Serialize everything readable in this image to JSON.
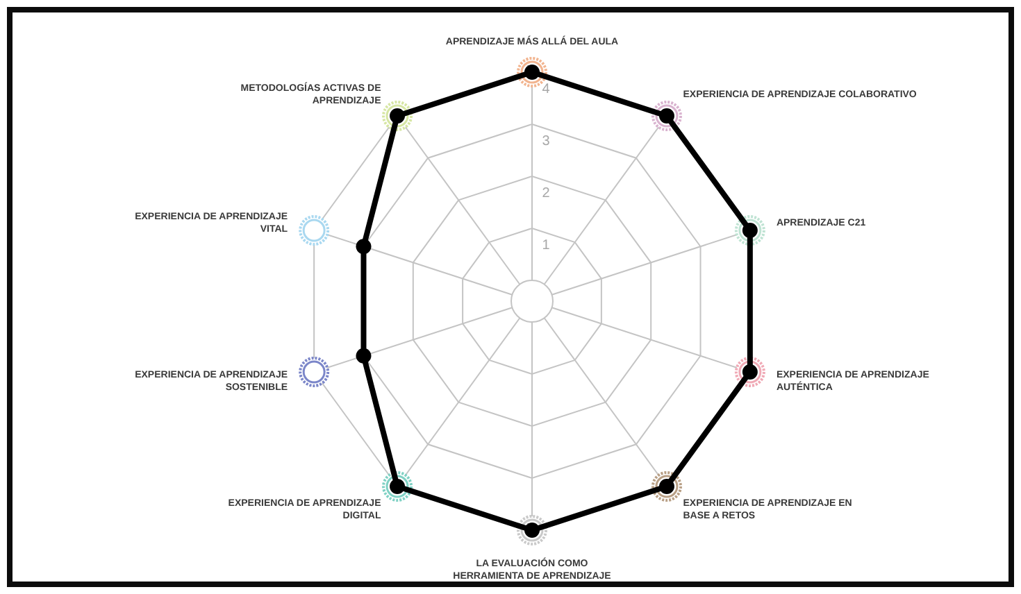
{
  "chart_data": {
    "type": "radar",
    "categories": [
      "APRENDIZAJE MÁS ALLÁ DEL AULA",
      "EXPERIENCIA DE APRENDIZAJE COLABORATIVO",
      "APRENDIZAJE C21",
      "EXPERIENCIA DE APRENDIZAJE\nAUTÉNTICA",
      "EXPERIENCIA DE APRENDIZAJE EN\nBASE A RETOS",
      "LA EVALUACIÓN COMO\nHERRAMIENTA DE APRENDIZAJE",
      "EXPERIENCIA DE APRENDIZAJE\nDIGITAL",
      "EXPERIENCIA DE APRENDIZAJE\nSOSTENIBLE",
      "EXPERIENCIA DE APRENDIZAJE\nVITAL",
      "METODOLOGÍAS ACTIVAS DE\nAPRENDIZAJE"
    ],
    "series": [
      {
        "color": "#000000",
        "values": [
          4,
          4,
          4,
          4,
          4,
          4,
          4,
          3,
          3,
          4
        ]
      }
    ],
    "ylim": [
      -0.4,
      4
    ],
    "yticks": [
      1,
      2,
      3,
      4
    ],
    "grid": true,
    "marker": "circle",
    "line_style": "solid"
  }
}
